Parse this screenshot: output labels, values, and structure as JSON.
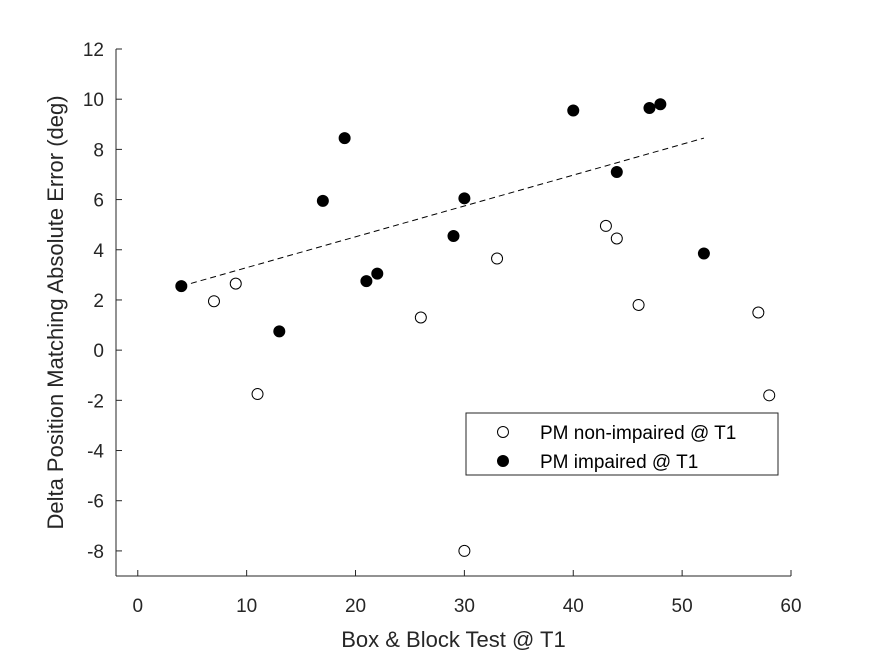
{
  "chart_data": {
    "type": "scatter",
    "xlabel": "Box & Block Test @ T1",
    "ylabel": "Delta Position Matching Absolute Error (deg)",
    "xlim": [
      -2,
      60
    ],
    "ylim": [
      -9,
      12
    ],
    "x_ticks": [
      0,
      10,
      20,
      30,
      40,
      50,
      60
    ],
    "y_ticks": [
      -8,
      -6,
      -4,
      -2,
      0,
      2,
      4,
      6,
      8,
      10,
      12
    ],
    "grid": false,
    "legend_position": "lower-right",
    "series": [
      {
        "name": "PM non-impaired @ T1",
        "marker": "open-circle",
        "color": "#000000",
        "points": [
          {
            "x": 7,
            "y": 1.95
          },
          {
            "x": 9,
            "y": 2.65
          },
          {
            "x": 11,
            "y": -1.75
          },
          {
            "x": 26,
            "y": 1.3
          },
          {
            "x": 30,
            "y": -8.0
          },
          {
            "x": 33,
            "y": 3.65
          },
          {
            "x": 43,
            "y": 4.95
          },
          {
            "x": 44,
            "y": 4.45
          },
          {
            "x": 46,
            "y": 1.8
          },
          {
            "x": 57,
            "y": 1.5
          },
          {
            "x": 58,
            "y": -1.8
          }
        ]
      },
      {
        "name": "PM impaired @ T1",
        "marker": "filled-circle",
        "color": "#000000",
        "points": [
          {
            "x": 4,
            "y": 2.55
          },
          {
            "x": 13,
            "y": 0.75
          },
          {
            "x": 17,
            "y": 5.95
          },
          {
            "x": 19,
            "y": 8.45
          },
          {
            "x": 21,
            "y": 2.75
          },
          {
            "x": 22,
            "y": 3.05
          },
          {
            "x": 29,
            "y": 4.55
          },
          {
            "x": 30,
            "y": 6.05
          },
          {
            "x": 40,
            "y": 9.55
          },
          {
            "x": 44,
            "y": 7.1
          },
          {
            "x": 47,
            "y": 9.65
          },
          {
            "x": 48,
            "y": 9.8
          },
          {
            "x": 52,
            "y": 3.85
          }
        ]
      }
    ],
    "trendline": {
      "style": "dashed",
      "color": "#000000",
      "x": [
        4,
        52
      ],
      "y": [
        2.55,
        8.45
      ]
    }
  }
}
